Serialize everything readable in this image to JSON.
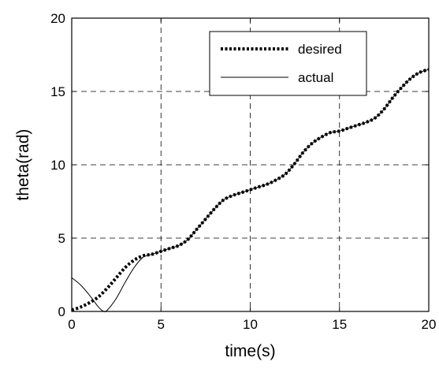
{
  "chart_data": {
    "type": "line",
    "xlabel": "time(s)",
    "ylabel": "theta(rad)",
    "xlim": [
      0,
      20
    ],
    "ylim": [
      0,
      20
    ],
    "xticks": [
      "0",
      "5",
      "10",
      "15",
      "20"
    ],
    "yticks": [
      "0",
      "5",
      "10",
      "15",
      "20"
    ],
    "grid": true,
    "grid_style": "dashed",
    "legend_position": "top-right",
    "series": [
      {
        "name": "desired",
        "style": "dotted",
        "x": [
          0,
          0.5,
          1,
          1.5,
          2,
          2.5,
          3,
          3.5,
          4,
          4.5,
          5,
          5.5,
          6,
          6.5,
          7,
          7.5,
          8,
          8.5,
          9,
          9.5,
          10,
          10.5,
          11,
          11.5,
          12,
          12.5,
          13,
          13.5,
          14,
          14.5,
          15,
          15.5,
          16,
          16.5,
          17,
          17.5,
          18,
          18.5,
          19,
          19.5,
          20
        ],
        "y": [
          0.1,
          0.3,
          0.6,
          1.0,
          1.6,
          2.3,
          3.0,
          3.5,
          3.8,
          3.9,
          4.1,
          4.3,
          4.5,
          4.9,
          5.6,
          6.3,
          7.0,
          7.6,
          7.9,
          8.1,
          8.3,
          8.5,
          8.7,
          9.0,
          9.4,
          10.1,
          10.9,
          11.5,
          11.9,
          12.2,
          12.3,
          12.5,
          12.7,
          12.9,
          13.2,
          13.8,
          14.6,
          15.3,
          15.9,
          16.3,
          16.5
        ]
      },
      {
        "name": "actual",
        "style": "solid",
        "x": [
          0,
          0.5,
          1,
          1.5,
          1.8,
          2,
          2.5,
          3,
          3.5,
          4,
          4.5,
          5,
          5.5,
          6,
          6.5,
          7,
          7.5,
          8,
          8.5,
          9,
          9.5,
          10,
          10.5,
          11,
          11.5,
          12,
          12.5,
          13,
          13.5,
          14,
          14.5,
          15,
          15.5,
          16,
          16.5,
          17,
          17.5,
          18,
          18.5,
          19,
          19.5,
          20
        ],
        "y": [
          2.3,
          1.8,
          1.1,
          0.3,
          0.0,
          0.1,
          0.9,
          2.0,
          3.0,
          3.7,
          3.9,
          4.1,
          4.3,
          4.5,
          4.9,
          5.6,
          6.3,
          7.0,
          7.6,
          7.9,
          8.1,
          8.3,
          8.5,
          8.7,
          9.0,
          9.4,
          10.1,
          10.9,
          11.5,
          11.9,
          12.2,
          12.3,
          12.5,
          12.7,
          12.9,
          13.2,
          13.8,
          14.6,
          15.3,
          15.9,
          16.3,
          16.5
        ]
      }
    ]
  }
}
